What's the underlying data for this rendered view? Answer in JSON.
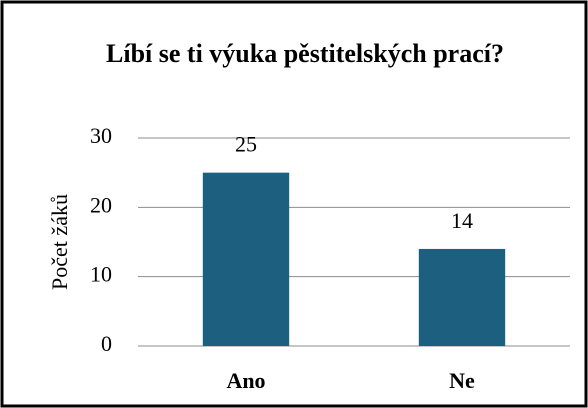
{
  "chart_data": {
    "type": "bar",
    "title": "Líbí se ti výuka pěstitelských prací?",
    "ylabel": "Počet žáků",
    "categories": [
      "Ano",
      "Ne"
    ],
    "values": [
      25,
      14
    ],
    "color": "#1c5f7e",
    "ylim": [
      0,
      30
    ],
    "yticks": [
      0,
      10,
      20,
      30
    ],
    "grid": true
  }
}
